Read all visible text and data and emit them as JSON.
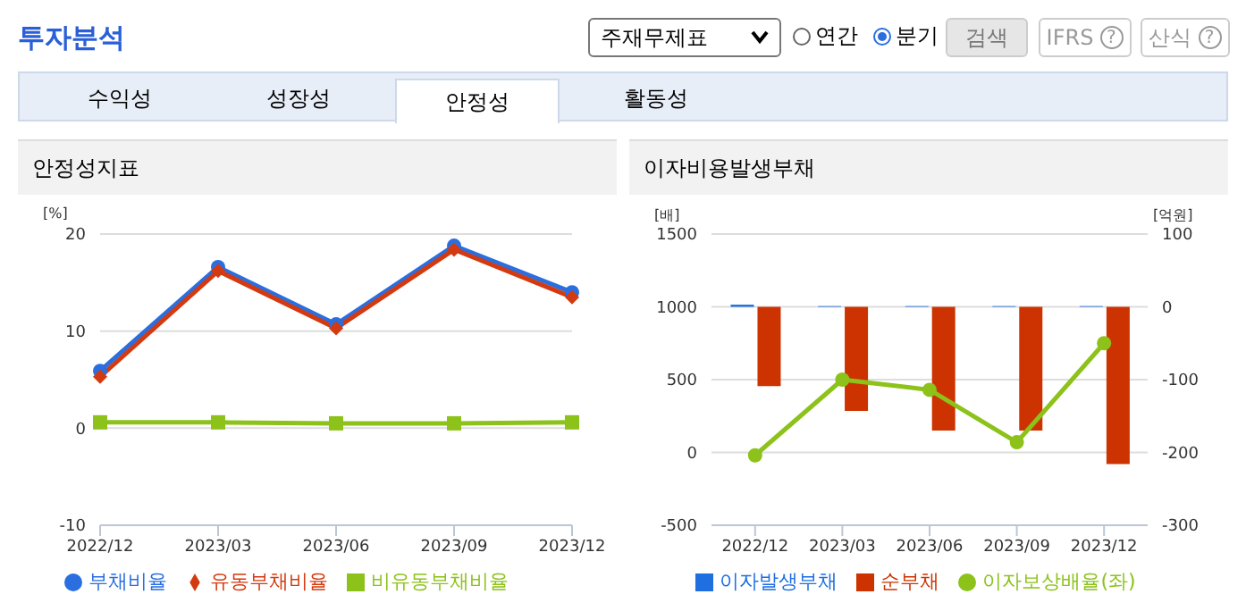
{
  "chart_data": [
    {
      "type": "other",
      "annotations": [
        "투자분석",
        "주재무제표",
        "연간",
        "분기",
        "검색",
        "IFRS",
        "산식",
        "수익성",
        "성장성",
        "안정성",
        "활동성",
        "?"
      ]
    },
    {
      "type": "line",
      "title": "안정성지표",
      "ylabel": "[%]",
      "categories": [
        "2022/12",
        "2023/03",
        "2023/06",
        "2023/09",
        "2023/12"
      ],
      "series": [
        {
          "name": "부채비율",
          "color": "#2a6ee0",
          "marker": "circle",
          "values": [
            5.9,
            16.6,
            10.7,
            18.8,
            14.0
          ]
        },
        {
          "name": "유동부채비율",
          "color": "#d33a10",
          "marker": "diamond",
          "values": [
            5.3,
            16.2,
            10.3,
            18.4,
            13.5
          ]
        },
        {
          "name": "비유동부채비율",
          "color": "#8cc21a",
          "marker": "square",
          "values": [
            0.6,
            0.6,
            0.5,
            0.5,
            0.6
          ]
        }
      ],
      "ylim": [
        -10,
        20
      ],
      "yticks": [
        -10,
        0,
        10,
        20
      ],
      "grid": "y",
      "legend": "bottom"
    },
    {
      "type": "bar",
      "title": "이자비용발생부채",
      "ylabel": "[배]",
      "y2label": "[억원]",
      "categories": [
        "2022/12",
        "2023/03",
        "2023/06",
        "2023/09",
        "2023/12"
      ],
      "series": [
        {
          "name": "이자발생부채",
          "color": "#1f6fe0",
          "axis": "y2",
          "values": [
            3,
            1,
            1,
            1,
            1
          ]
        },
        {
          "name": "순부채",
          "color": "#cc3300",
          "axis": "y2",
          "values": [
            -109,
            -143,
            -170,
            -170,
            -216
          ]
        },
        {
          "name": "이자보상배율(좌)",
          "type": "line",
          "color": "#8cc21a",
          "marker": "circle",
          "axis": "y",
          "values": [
            -20,
            500,
            430,
            70,
            750
          ]
        }
      ],
      "ylim": [
        -500,
        1500
      ],
      "yticks": [
        -500,
        0,
        500,
        1000,
        1500
      ],
      "y2lim": [
        -300,
        100
      ],
      "y2ticks": [
        -300,
        -200,
        -100,
        0,
        100
      ],
      "grid": "y",
      "legend": "bottom"
    }
  ]
}
